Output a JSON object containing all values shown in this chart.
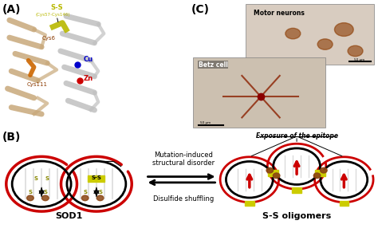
{
  "panel_A_label": "(A)",
  "panel_B_label": "(B)",
  "panel_C_label": "(C)",
  "panel_B_sod1_label": "SOD1",
  "panel_B_middle_text1": "Mutation-induced\nstructural disorder",
  "panel_B_middle_text2": "Disulfide shuffling",
  "panel_B_right_label": "S-S oligomers",
  "panel_B_epitope_label": "Exposure of the epitope",
  "panel_C_motor_label": "Motor neurons",
  "panel_C_betz_label": "Betz cell",
  "bg_color": "#ffffff",
  "protein_color_1": "#c8a87a",
  "protein_color_2": "#c0c0c0",
  "ss_bond_color": "#b8b800",
  "cu_color": "#0000cc",
  "zn_color": "#cc0000",
  "circle_red": "#cc0000",
  "arrow_red": "#cc0000",
  "yellow_rect": "#cccc00",
  "brown_dot": "#8B4513",
  "micro_bg1": "#d8ccc0",
  "micro_bg2": "#ccc0b0",
  "cell_color": "#8B3A00",
  "orange_loop": "#cc6600"
}
